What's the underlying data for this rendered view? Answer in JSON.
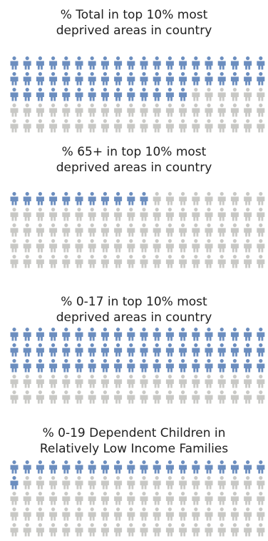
{
  "colors": {
    "filled": "#6c8ebf",
    "empty": "#c9c9c6"
  },
  "icon": "person-icon",
  "chart_data": [
    {
      "type": "pictograph",
      "title_lines": [
        "% Total in top 10% most",
        "deprived areas in country"
      ],
      "value_percent": 54,
      "rows": 5,
      "cols": 20
    },
    {
      "type": "pictograph",
      "title_lines": [
        "% 65+ in top 10% most",
        "deprived areas in country"
      ],
      "value_percent": 11,
      "rows": 5,
      "cols": 20
    },
    {
      "type": "pictograph",
      "title_lines": [
        "% 0-17 in top 10% most",
        "deprived areas in country"
      ],
      "value_percent": 60,
      "rows": 5,
      "cols": 20
    },
    {
      "type": "pictograph",
      "title_lines": [
        "% 0-19 Dependent Children in",
        "Relatively Low Income Families"
      ],
      "value_percent": 21,
      "rows": 5,
      "cols": 20
    }
  ]
}
